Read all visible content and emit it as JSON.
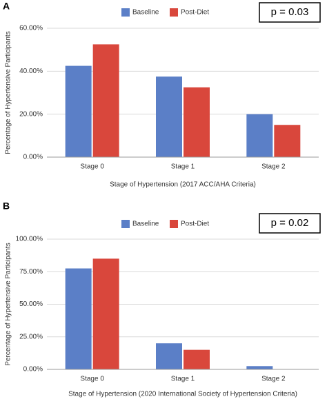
{
  "chart_data": [
    {
      "type": "bar",
      "panel_label": "A",
      "annotation": "p = 0.03",
      "x_label": "Stage of Hypertension (2017 ACC/AHA Criteria)",
      "y_label": "Percentage of Hypertensive Participants",
      "categories": [
        "Stage 0",
        "Stage 1",
        "Stage 2"
      ],
      "series": [
        {
          "name": "Baseline",
          "color": "#5b7fc7",
          "values": [
            42.5,
            37.5,
            20
          ]
        },
        {
          "name": "Post-Diet",
          "color": "#d9473c",
          "values": [
            52.5,
            32.5,
            15
          ]
        }
      ],
      "ylim": [
        0,
        60
      ],
      "yticks": [
        {
          "value": 0,
          "label": "0.00%"
        },
        {
          "value": 20,
          "label": "20.00%"
        },
        {
          "value": 40,
          "label": "40.00%"
        },
        {
          "value": 60,
          "label": "60.00%"
        }
      ],
      "grid": true,
      "legend": "top"
    },
    {
      "type": "bar",
      "panel_label": "B",
      "annotation": "p = 0.02",
      "x_label": "Stage of Hypertension (2020 International Society of Hypertension Criteria)",
      "y_label": "Percentage of Hypertensive Participants",
      "categories": [
        "Stage 0",
        "Stage 1",
        "Stage 2"
      ],
      "series": [
        {
          "name": "Baseline",
          "color": "#5b7fc7",
          "values": [
            77.5,
            20,
            2.5
          ]
        },
        {
          "name": "Post-Diet",
          "color": "#d9473c",
          "values": [
            85,
            15,
            0
          ]
        }
      ],
      "ylim": [
        0,
        100
      ],
      "yticks": [
        {
          "value": 0,
          "label": "0.00%"
        },
        {
          "value": 25,
          "label": "25.00%"
        },
        {
          "value": 50,
          "label": "50.00%"
        },
        {
          "value": 75,
          "label": "75.00%"
        },
        {
          "value": 100,
          "label": "100.00%"
        }
      ],
      "grid": true,
      "legend": "top"
    }
  ]
}
